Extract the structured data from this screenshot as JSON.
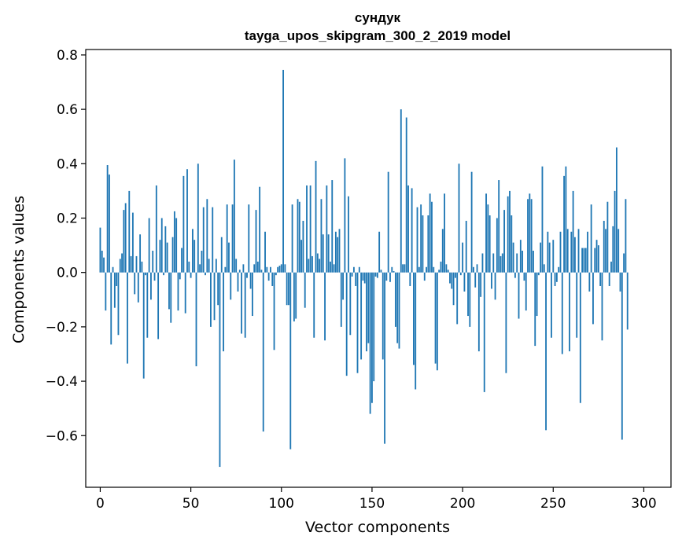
{
  "chart_data": {
    "type": "bar",
    "title": "сундук",
    "subtitle": "tayga_upos_skipgram_300_2_2019 model",
    "xlabel": "Vector components",
    "ylabel": "Components values",
    "xlim": [
      -8,
      315
    ],
    "ylim": [
      -0.79,
      0.82
    ],
    "x_ticks": [
      0,
      50,
      100,
      150,
      200,
      250,
      300
    ],
    "y_ticks": [
      -0.6,
      -0.4,
      -0.2,
      0.0,
      0.2,
      0.4,
      0.6,
      0.8
    ],
    "y_tick_labels": [
      "−0.6",
      "−0.4",
      "−0.2",
      "0.0",
      "0.2",
      "0.4",
      "0.6",
      "0.8"
    ],
    "bar_color": "#1f77b4",
    "grid": false,
    "legend": "none",
    "values": [
      0.165,
      0.08,
      0.055,
      -0.14,
      0.395,
      0.36,
      -0.265,
      0.02,
      -0.13,
      -0.05,
      -0.23,
      0.05,
      0.07,
      0.23,
      0.255,
      -0.335,
      0.3,
      0.06,
      0.22,
      -0.08,
      0.06,
      -0.11,
      0.14,
      0.04,
      -0.39,
      -0.01,
      -0.24,
      0.2,
      -0.1,
      0.08,
      -0.03,
      0.32,
      -0.245,
      0.12,
      0.2,
      -0.01,
      0.17,
      0.11,
      -0.135,
      -0.185,
      0.13,
      0.225,
      0.2,
      -0.14,
      -0.025,
      0.09,
      0.355,
      -0.15,
      0.38,
      0.04,
      -0.02,
      0.16,
      0.12,
      -0.345,
      0.4,
      0.03,
      0.08,
      0.24,
      -0.01,
      0.27,
      0.05,
      -0.2,
      0.24,
      -0.175,
      0.05,
      -0.12,
      -0.715,
      0.13,
      -0.29,
      0.02,
      0.25,
      0.11,
      -0.1,
      0.25,
      0.415,
      0.05,
      -0.07,
      0.01,
      -0.225,
      0.03,
      -0.24,
      -0.02,
      0.25,
      -0.06,
      -0.16,
      0.03,
      0.23,
      0.04,
      0.315,
      0.01,
      -0.585,
      0.15,
      0.02,
      -0.03,
      0.02,
      -0.05,
      -0.285,
      -0.01,
      0.02,
      0.025,
      0.03,
      0.745,
      0.03,
      -0.12,
      -0.12,
      -0.65,
      0.25,
      -0.18,
      -0.17,
      0.27,
      0.26,
      0.12,
      0.19,
      -0.13,
      0.32,
      0.05,
      0.32,
      0.06,
      -0.24,
      0.41,
      0.07,
      0.05,
      0.27,
      0.14,
      -0.25,
      0.32,
      0.14,
      0.04,
      0.34,
      0.03,
      0.15,
      0.13,
      0.16,
      -0.2,
      -0.1,
      0.42,
      -0.38,
      0.28,
      -0.23,
      -0.015,
      0.02,
      -0.05,
      -0.37,
      0.02,
      -0.32,
      -0.03,
      -0.04,
      -0.29,
      -0.26,
      -0.52,
      -0.48,
      -0.4,
      -0.015,
      -0.02,
      0.15,
      0.01,
      -0.32,
      -0.63,
      -0.03,
      0.37,
      -0.035,
      0.02,
      0.005,
      -0.2,
      -0.26,
      -0.28,
      0.6,
      0.03,
      0.03,
      0.57,
      0.32,
      -0.05,
      0.31,
      -0.34,
      -0.43,
      0.24,
      0.02,
      0.25,
      0.21,
      -0.03,
      0.02,
      0.21,
      0.29,
      0.26,
      0.02,
      -0.335,
      -0.36,
      0.01,
      0.04,
      0.16,
      0.29,
      0.03,
      0.01,
      -0.04,
      -0.06,
      -0.12,
      -0.02,
      -0.19,
      0.4,
      -0.01,
      0.11,
      -0.07,
      0.19,
      -0.16,
      -0.2,
      0.37,
      0.02,
      -0.055,
      0.03,
      -0.29,
      -0.09,
      0.07,
      -0.44,
      0.29,
      0.25,
      0.21,
      -0.06,
      0.07,
      -0.1,
      0.2,
      0.34,
      0.06,
      0.07,
      0.23,
      -0.37,
      0.28,
      0.3,
      0.21,
      0.11,
      -0.02,
      0.07,
      -0.17,
      0.12,
      0.08,
      -0.03,
      -0.14,
      0.27,
      0.29,
      0.27,
      0.08,
      -0.27,
      -0.16,
      -0.01,
      0.11,
      0.39,
      0.03,
      -0.58,
      0.15,
      0.11,
      -0.24,
      0.12,
      -0.05,
      -0.035,
      0.02,
      0.15,
      -0.3,
      0.355,
      0.39,
      0.16,
      -0.29,
      0.15,
      0.3,
      0.13,
      -0.24,
      0.16,
      -0.48,
      0.09,
      0.09,
      0.09,
      0.15,
      -0.07,
      0.25,
      -0.19,
      0.09,
      0.12,
      0.1,
      -0.05,
      -0.25,
      0.19,
      0.16,
      0.26,
      -0.05,
      0.04,
      0.17,
      0.3,
      0.46,
      0.16,
      -0.07,
      -0.615,
      0.07,
      0.27,
      -0.21
    ]
  }
}
